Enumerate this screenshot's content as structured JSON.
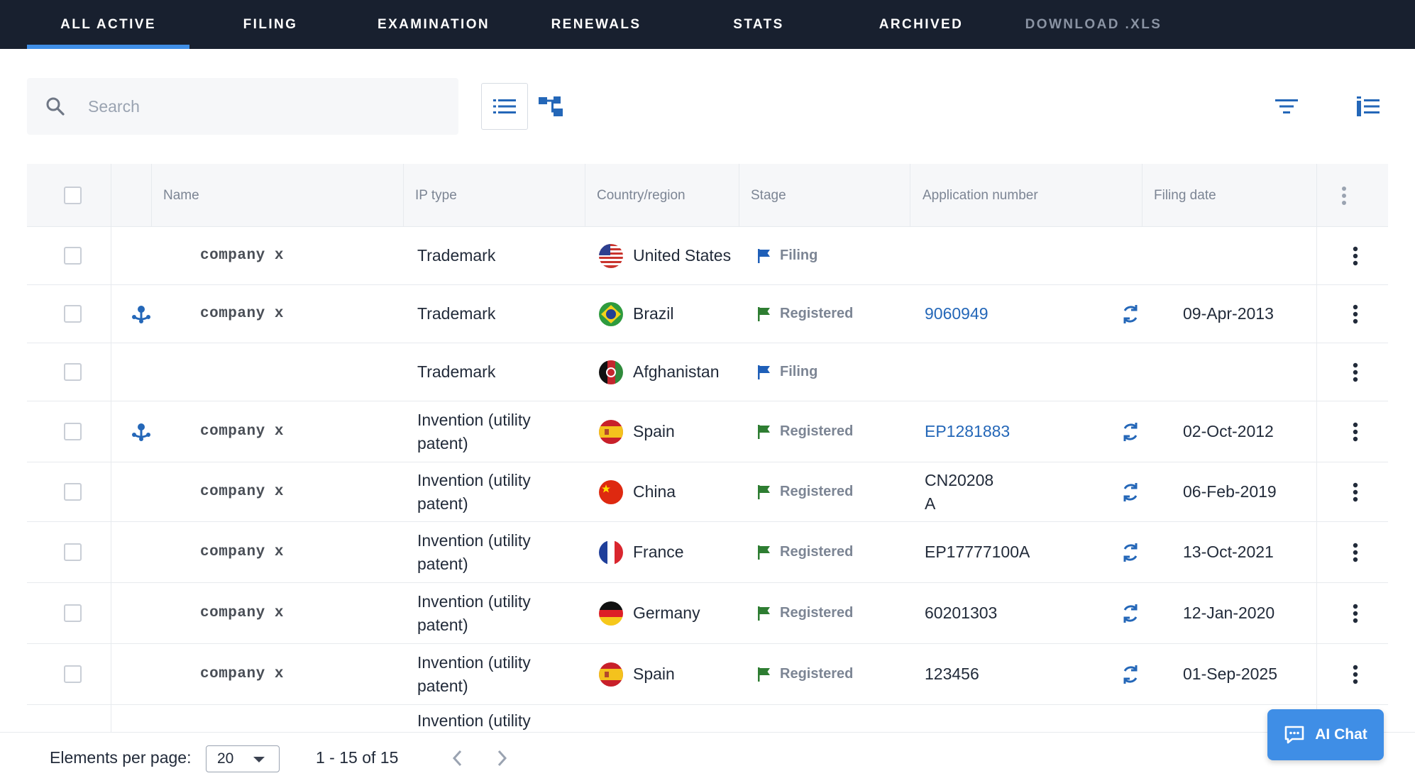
{
  "nav": {
    "tabs": [
      {
        "label": "ALL ACTIVE"
      },
      {
        "label": "FILING"
      },
      {
        "label": "EXAMINATION"
      },
      {
        "label": "RENEWALS"
      },
      {
        "label": "STATS"
      },
      {
        "label": "ARCHIVED"
      },
      {
        "label": "DOWNLOAD .XLS"
      }
    ],
    "active_tab": "ALL ACTIVE"
  },
  "toolbar": {
    "search_placeholder": "Search",
    "search_value": ""
  },
  "table": {
    "columns": [
      "Name",
      "IP type",
      "Country/region",
      "Stage",
      "Application number",
      "Filing date"
    ],
    "rows": [
      {
        "name": "company x",
        "ip_type": "Trademark",
        "country": "United States",
        "stage": "Filing",
        "app_number": "",
        "filing_date": ""
      },
      {
        "name": "company x",
        "ip_type": "Trademark",
        "country": "Brazil",
        "stage": "Registered",
        "app_number": "9060949",
        "filing_date": "09-Apr-2013"
      },
      {
        "name": "",
        "ip_type": "Trademark",
        "country": "Afghanistan",
        "stage": "Filing",
        "app_number": "",
        "filing_date": ""
      },
      {
        "name": "company x",
        "ip_type": "Invention (utility patent)",
        "country": "Spain",
        "stage": "Registered",
        "app_number": "EP1281883",
        "filing_date": "02-Oct-2012"
      },
      {
        "name": "company x",
        "ip_type": "Invention (utility patent)",
        "country": "China",
        "stage": "Registered",
        "app_number": "CN20208 A",
        "filing_date": "06-Feb-2019"
      },
      {
        "name": "company x",
        "ip_type": "Invention (utility patent)",
        "country": "France",
        "stage": "Registered",
        "app_number": "EP17777100A",
        "filing_date": "13-Oct-2021"
      },
      {
        "name": "company x",
        "ip_type": "Invention (utility patent)",
        "country": "Germany",
        "stage": "Registered",
        "app_number": "60201303",
        "filing_date": "12-Jan-2020"
      },
      {
        "name": "company x",
        "ip_type": "Invention (utility patent)",
        "country": "Spain",
        "stage": "Registered",
        "app_number": "123456",
        "filing_date": "01-Sep-2025"
      },
      {
        "name": "",
        "ip_type": "Invention (utility",
        "country": "",
        "stage": "",
        "app_number": "",
        "filing_date": ""
      }
    ]
  },
  "footer": {
    "per_page_label": "Elements per page:",
    "per_page_value": "20",
    "range": "1 - 15 of 15"
  },
  "ai_chat": {
    "label": "AI Chat"
  },
  "colors": {
    "nav_bg": "#18202f",
    "accent": "#3f8ee6",
    "link": "#2467b8",
    "stage_filing": "#1f5fb8",
    "stage_registered": "#2e7d32"
  }
}
